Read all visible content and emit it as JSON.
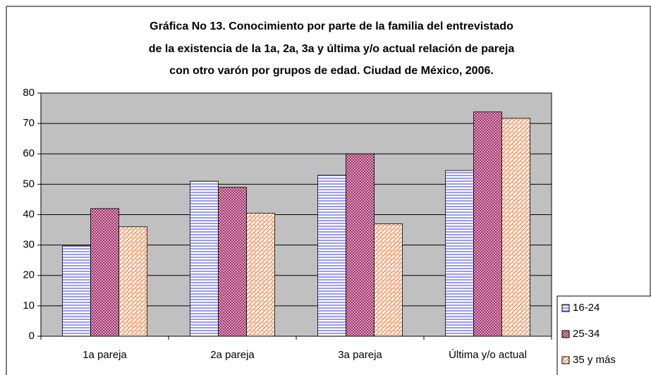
{
  "chart_data": {
    "type": "bar",
    "title": [
      "Gráfica No 13. Conocimiento por parte de la familia del entrevistado",
      "de la existencia de la 1a, 2a, 3a y última y/o actual relación de pareja",
      "con otro varón por grupos de edad. Ciudad de México, 2006."
    ],
    "categories": [
      "1a  pareja",
      "2a pareja",
      "3a pareja",
      "Última y/o actual"
    ],
    "series": [
      {
        "name": "16-24",
        "color": "#9999ff",
        "values": [
          29.7,
          51,
          53,
          54.5
        ]
      },
      {
        "name": "25-34",
        "color": "#993366",
        "values": [
          42,
          49,
          60,
          73.8
        ]
      },
      {
        "name": "35 y más",
        "color": "#ff9966",
        "values": [
          36,
          40.5,
          37,
          71.7
        ]
      }
    ],
    "ylim": [
      0,
      80
    ],
    "yticks": [
      0,
      10,
      20,
      30,
      40,
      50,
      60,
      70,
      80
    ],
    "grid": true,
    "legend": "bottom-right"
  }
}
